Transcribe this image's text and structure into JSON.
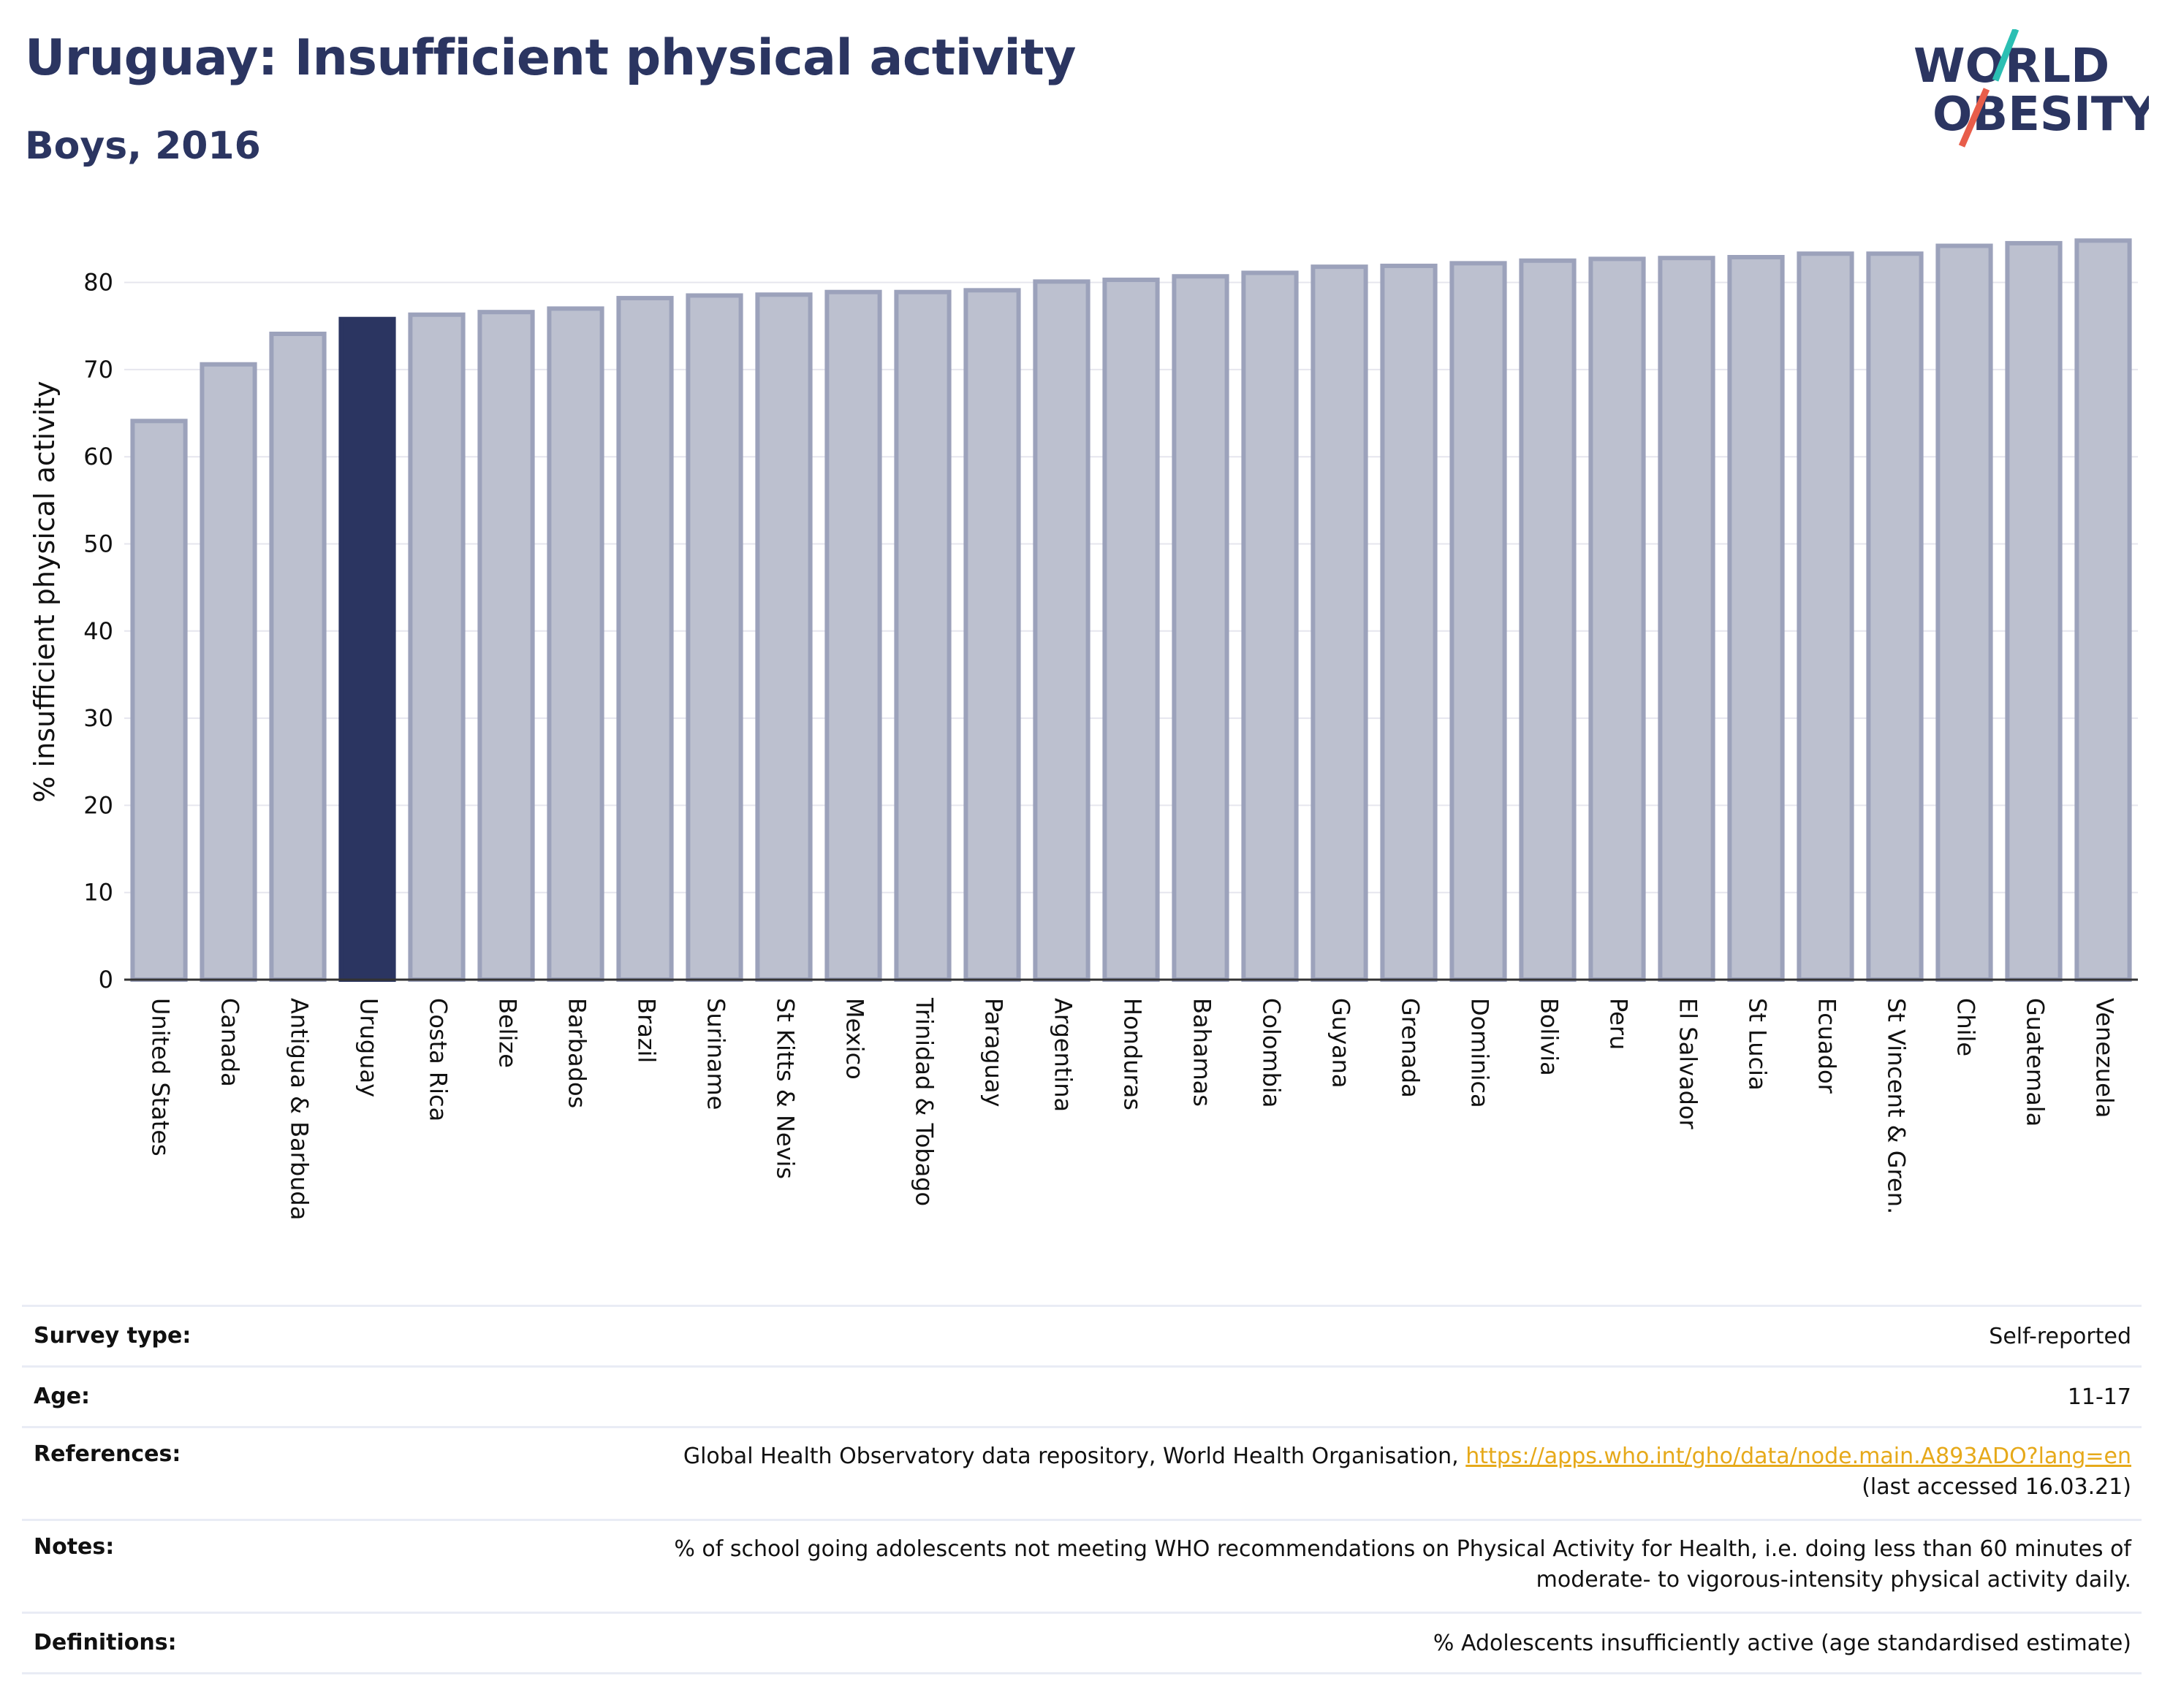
{
  "header": {
    "title": "Uruguay: Insufficient physical activity",
    "subtitle": "Boys, 2016"
  },
  "logo": {
    "line1": "WORLD",
    "line2": "OBESITY",
    "colors": {
      "text": "#2b3561",
      "slash_teal": "#2bbfb3",
      "slash_red": "#e85d4a"
    }
  },
  "colors": {
    "bar_fill": "#bcc0cf",
    "bar_stroke": "#9ca2bb",
    "highlight_fill": "#2b3561",
    "text": "#111111",
    "title": "#2b3561",
    "link": "#e6a91a",
    "grid": "#e6e6ee"
  },
  "chart_data": {
    "type": "bar",
    "title": "Uruguay: Insufficient physical activity",
    "subtitle": "Boys, 2016",
    "xlabel": "",
    "ylabel": "% insufficient physical activity",
    "ylim": [
      0,
      85
    ],
    "yticks": [
      0,
      10,
      20,
      30,
      40,
      50,
      60,
      70,
      80
    ],
    "grid": true,
    "highlight": "Uruguay",
    "categories": [
      "United States",
      "Canada",
      "Antigua & Barbuda",
      "Uruguay",
      "Costa Rica",
      "Belize",
      "Barbados",
      "Brazil",
      "Suriname",
      "St Kitts & Nevis",
      "Mexico",
      "Trinidad & Tobago",
      "Paraguay",
      "Argentina",
      "Honduras",
      "Bahamas",
      "Colombia",
      "Guyana",
      "Grenada",
      "Dominica",
      "Bolivia",
      "Peru",
      "El Salvador",
      "St Lucia",
      "Ecuador",
      "St Vincent & Gren.",
      "Chile",
      "Guatemala",
      "Venezuela"
    ],
    "values": [
      64.1,
      70.6,
      74.1,
      75.8,
      76.3,
      76.6,
      77.0,
      78.2,
      78.5,
      78.6,
      78.9,
      78.9,
      79.1,
      80.1,
      80.3,
      80.7,
      81.1,
      81.8,
      81.9,
      82.2,
      82.5,
      82.7,
      82.8,
      82.9,
      83.3,
      83.3,
      84.2,
      84.5,
      84.8
    ]
  },
  "info": {
    "survey_type": {
      "label": "Survey type:",
      "value": "Self-reported"
    },
    "age": {
      "label": "Age:",
      "value": "11-17"
    },
    "references": {
      "label": "References:",
      "text": "Global Health Observatory data repository, World Health Organisation,",
      "link": "https://apps.who.int/gho/data/node.main.A893ADO?lang=en",
      "accessed": "(last accessed 16.03.21)"
    },
    "notes": {
      "label": "Notes:",
      "line1": "% of school going adolescents not meeting WHO recommendations on Physical Activity for Health, i.e. doing less than 60 minutes of",
      "line2": "moderate- to vigorous-intensity physical activity daily."
    },
    "definitions": {
      "label": "Definitions:",
      "value": "% Adolescents insufficiently active (age standardised estimate)"
    }
  }
}
